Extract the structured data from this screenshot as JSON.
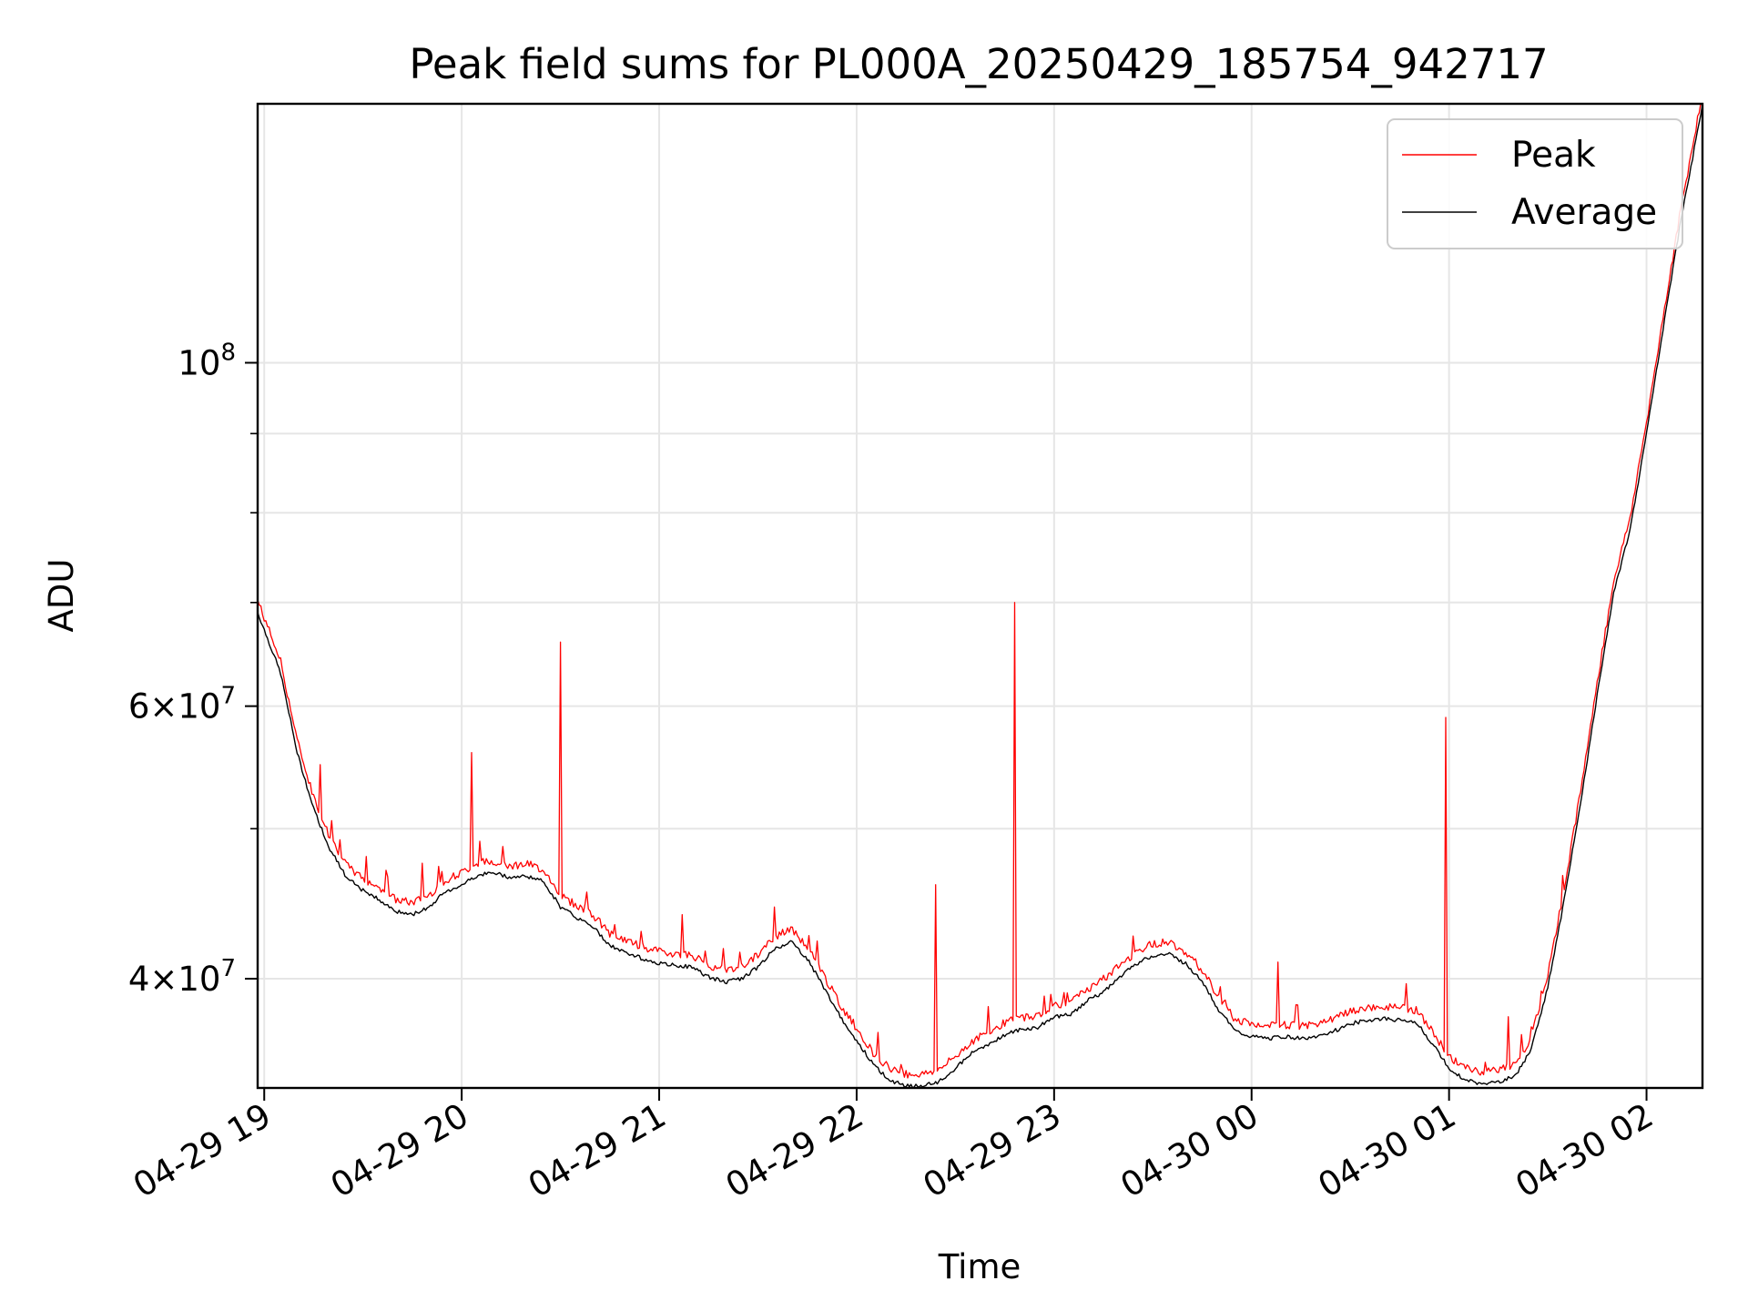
{
  "chart_data": {
    "type": "line",
    "title": "Peak field sums for PL000A_20250429_185754_942717",
    "xlabel": "Time",
    "ylabel": "ADU",
    "yscale": "log",
    "xlim": [
      "2025-04-29 18:58",
      "2025-04-30 02:17"
    ],
    "ylim": [
      34000000,
      147000000
    ],
    "grid": true,
    "legend_position": "upper right",
    "x_tick_labels": [
      "04-29 19",
      "04-29 20",
      "04-29 21",
      "04-29 22",
      "04-29 23",
      "04-30 00",
      "04-30 01",
      "04-30 02"
    ],
    "x_tick_times": [
      "2025-04-29 19:00",
      "2025-04-29 20:00",
      "2025-04-29 21:00",
      "2025-04-29 22:00",
      "2025-04-29 23:00",
      "2025-04-30 00:00",
      "2025-04-30 01:00",
      "2025-04-30 02:00"
    ],
    "y_major_ticks": [
      {
        "value": 40000000,
        "mantissa": "4",
        "exponent": "7"
      },
      {
        "value": 60000000,
        "mantissa": "6",
        "exponent": "7"
      },
      {
        "value": 100000000,
        "mantissa": "",
        "exponent": "8"
      }
    ],
    "y_minor_ticks": [
      50000000,
      70000000,
      80000000,
      90000000
    ],
    "series": [
      {
        "name": "Average",
        "color": "#000000",
        "points": [
          [
            "2025-04-29 18:58",
            69000000
          ],
          [
            "2025-04-29 19:05",
            63000000
          ],
          [
            "2025-04-29 19:10",
            56000000
          ],
          [
            "2025-04-29 19:15",
            51500000
          ],
          [
            "2025-04-29 19:20",
            48500000
          ],
          [
            "2025-04-29 19:25",
            46500000
          ],
          [
            "2025-04-29 19:30",
            45600000
          ],
          [
            "2025-04-29 19:35",
            45000000
          ],
          [
            "2025-04-29 19:40",
            44200000
          ],
          [
            "2025-04-29 19:45",
            44000000
          ],
          [
            "2025-04-29 19:50",
            44500000
          ],
          [
            "2025-04-29 19:55",
            45500000
          ],
          [
            "2025-04-29 20:00",
            46000000
          ],
          [
            "2025-04-29 20:05",
            46700000
          ],
          [
            "2025-04-29 20:10",
            46800000
          ],
          [
            "2025-04-29 20:15",
            46500000
          ],
          [
            "2025-04-29 20:20",
            46600000
          ],
          [
            "2025-04-29 20:25",
            46200000
          ],
          [
            "2025-04-29 20:30",
            44500000
          ],
          [
            "2025-04-29 20:35",
            43800000
          ],
          [
            "2025-04-29 20:40",
            43200000
          ],
          [
            "2025-04-29 20:45",
            42000000
          ],
          [
            "2025-04-29 20:50",
            41600000
          ],
          [
            "2025-04-29 20:55",
            41200000
          ],
          [
            "2025-04-29 21:00",
            40900000
          ],
          [
            "2025-04-29 21:05",
            40800000
          ],
          [
            "2025-04-29 21:10",
            40700000
          ],
          [
            "2025-04-29 21:15",
            40100000
          ],
          [
            "2025-04-29 21:20",
            39800000
          ],
          [
            "2025-04-29 21:25",
            40000000
          ],
          [
            "2025-04-29 21:30",
            40700000
          ],
          [
            "2025-04-29 21:35",
            41800000
          ],
          [
            "2025-04-29 21:40",
            42300000
          ],
          [
            "2025-04-29 21:45",
            41200000
          ],
          [
            "2025-04-29 21:50",
            39500000
          ],
          [
            "2025-04-29 21:55",
            37800000
          ],
          [
            "2025-04-29 22:00",
            36500000
          ],
          [
            "2025-04-29 22:05",
            35200000
          ],
          [
            "2025-04-29 22:10",
            34400000
          ],
          [
            "2025-04-29 22:15",
            34100000
          ],
          [
            "2025-04-29 22:20",
            34100000
          ],
          [
            "2025-04-29 22:25",
            34300000
          ],
          [
            "2025-04-29 22:30",
            35000000
          ],
          [
            "2025-04-29 22:35",
            35800000
          ],
          [
            "2025-04-29 22:40",
            36300000
          ],
          [
            "2025-04-29 22:45",
            36800000
          ],
          [
            "2025-04-29 22:50",
            37100000
          ],
          [
            "2025-04-29 22:55",
            37200000
          ],
          [
            "2025-04-29 23:00",
            37800000
          ],
          [
            "2025-04-29 23:05",
            37900000
          ],
          [
            "2025-04-29 23:10",
            38700000
          ],
          [
            "2025-04-29 23:15",
            39200000
          ],
          [
            "2025-04-29 23:20",
            40100000
          ],
          [
            "2025-04-29 23:25",
            40900000
          ],
          [
            "2025-04-29 23:30",
            41400000
          ],
          [
            "2025-04-29 23:35",
            41500000
          ],
          [
            "2025-04-29 23:40",
            40900000
          ],
          [
            "2025-04-29 23:45",
            39800000
          ],
          [
            "2025-04-29 23:50",
            38200000
          ],
          [
            "2025-04-29 23:55",
            37000000
          ],
          [
            "2025-04-30 00:00",
            36700000
          ],
          [
            "2025-04-30 00:05",
            36600000
          ],
          [
            "2025-04-30 00:10",
            36700000
          ],
          [
            "2025-04-30 00:15",
            36600000
          ],
          [
            "2025-04-30 00:20",
            36700000
          ],
          [
            "2025-04-30 00:25",
            37000000
          ],
          [
            "2025-04-30 00:30",
            37400000
          ],
          [
            "2025-04-30 00:35",
            37600000
          ],
          [
            "2025-04-30 00:40",
            37700000
          ],
          [
            "2025-04-30 00:45",
            37600000
          ],
          [
            "2025-04-30 00:50",
            37500000
          ],
          [
            "2025-04-30 00:55",
            36300000
          ],
          [
            "2025-04-30 01:00",
            35000000
          ],
          [
            "2025-04-30 01:05",
            34400000
          ],
          [
            "2025-04-30 01:10",
            34200000
          ],
          [
            "2025-04-30 01:15",
            34300000
          ],
          [
            "2025-04-30 01:20",
            34600000
          ],
          [
            "2025-04-30 01:25",
            36000000
          ],
          [
            "2025-04-30 01:30",
            39500000
          ],
          [
            "2025-04-30 01:35",
            45000000
          ],
          [
            "2025-04-30 01:40",
            52000000
          ],
          [
            "2025-04-30 01:45",
            61000000
          ],
          [
            "2025-04-30 01:50",
            71000000
          ],
          [
            "2025-04-30 01:55",
            78000000
          ],
          [
            "2025-04-30 02:00",
            90000000
          ],
          [
            "2025-04-30 02:05",
            105000000
          ],
          [
            "2025-04-30 02:10",
            122000000
          ],
          [
            "2025-04-30 02:17",
            147000000
          ]
        ]
      },
      {
        "name": "Peak",
        "color": "#ff0000",
        "offset_ratio": 1.012,
        "spikes": [
          [
            "2025-04-29 19:17",
            55000000
          ],
          [
            "2025-04-29 19:37",
            47000000
          ],
          [
            "2025-04-29 19:48",
            47500000
          ],
          [
            "2025-04-29 20:03",
            56000000
          ],
          [
            "2025-04-29 20:30",
            66000000
          ],
          [
            "2025-04-29 20:38",
            45500000
          ],
          [
            "2025-04-29 21:07",
            44000000
          ],
          [
            "2025-04-29 21:35",
            44500000
          ],
          [
            "2025-04-29 22:24",
            46000000
          ],
          [
            "2025-04-29 22:48",
            70000000
          ],
          [
            "2025-04-30 00:08",
            41000000
          ],
          [
            "2025-04-30 00:59",
            59000000
          ],
          [
            "2025-04-30 01:18",
            37800000
          ]
        ]
      }
    ]
  }
}
